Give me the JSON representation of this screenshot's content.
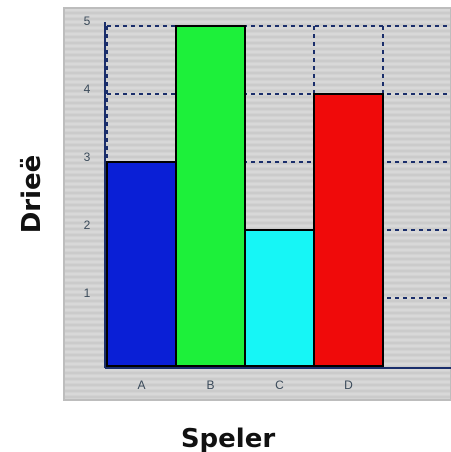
{
  "chart_data": {
    "type": "bar",
    "categories": [
      "A",
      "B",
      "C",
      "D"
    ],
    "values": [
      3,
      5,
      2,
      4
    ],
    "bar_colors": [
      "#0a1fd6",
      "#1df03a",
      "#16f6f6",
      "#f00a0a"
    ],
    "xlabel": "Speler",
    "ylabel": "Drieë",
    "ylim": [
      0,
      5
    ],
    "yticks": [
      1,
      2,
      3,
      4,
      5
    ],
    "grid": true,
    "background": "#d4d4d4",
    "axis_color": "#1a2e6b",
    "grid_color": "#1a2e6b"
  }
}
